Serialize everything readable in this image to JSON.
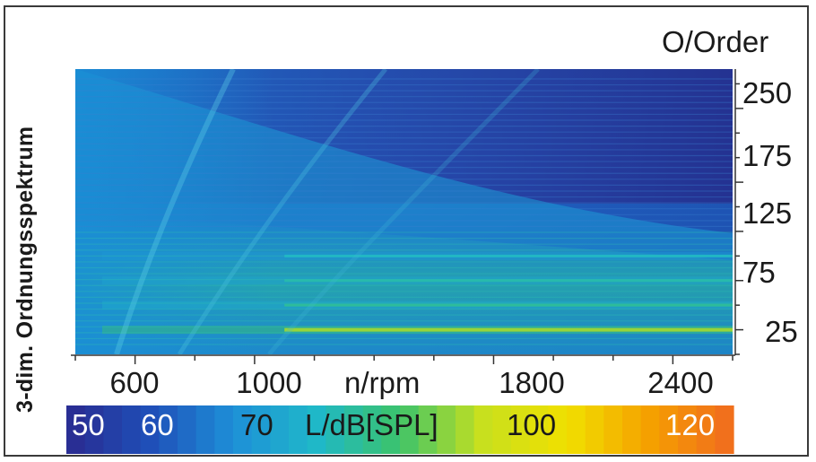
{
  "chart_data": {
    "type": "heatmap",
    "title": "3-dim. Ordnungsspektrum",
    "xlabel": "n/rpm",
    "ylabel": "O/Order",
    "colorbar_label": "L/dB[SPL]",
    "x_ticks": [
      600,
      1000,
      1800,
      2400
    ],
    "y_ticks": [
      25,
      75,
      125,
      175,
      250
    ],
    "colorbar_ticks": [
      50,
      60,
      70,
      100,
      120
    ],
    "xlim": [
      400,
      2600
    ],
    "ylim": [
      0,
      290
    ],
    "zlim": [
      45,
      125
    ],
    "dominant_orders": [
      {
        "order": 25,
        "level_db": 92
      },
      {
        "order": 50,
        "level_db": 80
      },
      {
        "order": 75,
        "level_db": 78
      },
      {
        "order": 100,
        "level_db": 75
      }
    ],
    "colormap": [
      "#2a2a8f",
      "#1f4fb8",
      "#1e8fd8",
      "#1fb8c8",
      "#3cc36a",
      "#c8e01e",
      "#f0e000",
      "#f5a000",
      "#f06a20"
    ]
  }
}
